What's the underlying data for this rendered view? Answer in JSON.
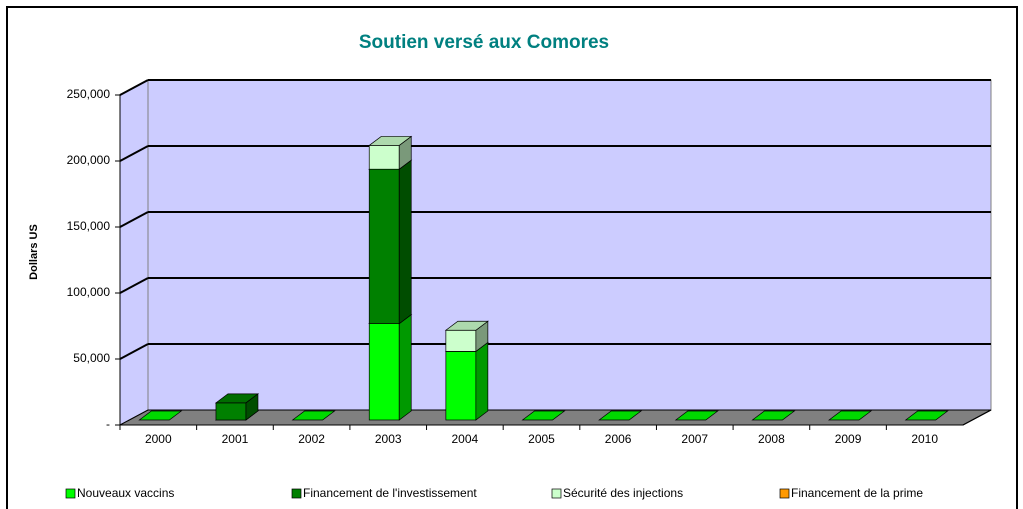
{
  "chart_data": {
    "type": "bar3d_stacked",
    "title": "Soutien versé aux Comores",
    "y_label": "Dollars US",
    "categories": [
      "2000",
      "2001",
      "2002",
      "2003",
      "2004",
      "2005",
      "2006",
      "2007",
      "2008",
      "2009",
      "2010"
    ],
    "series": [
      {
        "name": "Nouveaux vaccins",
        "color": "#00ff00",
        "values": [
          0,
          0,
          0,
          73000,
          52000,
          0,
          0,
          0,
          0,
          0,
          0
        ]
      },
      {
        "name": "Financement de l'investissement",
        "color": "#008000",
        "values": [
          0,
          13000,
          0,
          117000,
          0,
          0,
          0,
          0,
          0,
          0,
          0
        ]
      },
      {
        "name": "Sécurité des injections",
        "color": "#ccffcc",
        "values": [
          0,
          0,
          0,
          18000,
          16000,
          0,
          0,
          0,
          0,
          0,
          0
        ]
      },
      {
        "name": "Financement de la prime",
        "color": "#ff9900",
        "values": [
          0,
          0,
          0,
          0,
          0,
          0,
          0,
          0,
          0,
          0,
          0
        ]
      }
    ],
    "ylim": [
      0,
      250000
    ],
    "yticks": [
      {
        "value": 0,
        "label": "-"
      },
      {
        "value": 50000,
        "label": "50,000"
      },
      {
        "value": 100000,
        "label": "100,000"
      },
      {
        "value": 150000,
        "label": "150,000"
      },
      {
        "value": 200000,
        "label": "200,000"
      },
      {
        "value": 250000,
        "label": "250,000"
      }
    ],
    "grid": true,
    "wall_color": "#ccccff",
    "legend": "bottom"
  }
}
